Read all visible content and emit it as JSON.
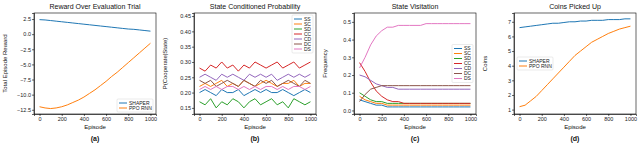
{
  "chart_data": [
    {
      "type": "line",
      "title": "Reward Over Evaluation Trial",
      "x_label": "Episode",
      "y_label": "Total Episode Reward",
      "caption": "(a)",
      "x": [
        0,
        50,
        100,
        150,
        200,
        250,
        300,
        350,
        400,
        450,
        500,
        550,
        600,
        650,
        700,
        750,
        800,
        850,
        900,
        950,
        1000
      ],
      "xlim": [
        -50,
        1050
      ],
      "xticks": [
        0,
        200,
        400,
        600,
        800,
        1000
      ],
      "ylim": [
        -13.2,
        3.5
      ],
      "yticks": [
        {
          "value": -12.5,
          "label": "−12.5"
        },
        {
          "value": -10,
          "label": "−10.0"
        },
        {
          "value": -7.5,
          "label": "−7.5"
        },
        {
          "value": -5,
          "label": "−5.0"
        },
        {
          "value": -2.5,
          "label": "−2.5"
        },
        {
          "value": 0,
          "label": "0.0"
        },
        {
          "value": 2.5,
          "label": "2.5"
        }
      ],
      "legend": "lower right",
      "series": [
        {
          "name": "SHAPER",
          "color": "#1f77b4",
          "values": [
            2.4,
            2.35,
            2.25,
            2.15,
            2.05,
            1.95,
            1.85,
            1.75,
            1.65,
            1.55,
            1.45,
            1.35,
            1.25,
            1.15,
            1.05,
            0.95,
            0.85,
            0.8,
            0.7,
            0.6,
            0.5
          ]
        },
        {
          "name": "PPO RNN",
          "color": "#ff7f0e",
          "values": [
            -12.0,
            -12.2,
            -12.3,
            -12.2,
            -12.0,
            -11.7,
            -11.3,
            -10.9,
            -10.4,
            -9.8,
            -9.2,
            -8.5,
            -7.8,
            -7.0,
            -6.3,
            -5.5,
            -4.7,
            -3.9,
            -3.1,
            -2.3,
            -1.5
          ]
        }
      ]
    },
    {
      "type": "line",
      "title": "State Conditioned Probability",
      "x_label": "Episode",
      "y_label": "P(Cooperate|State)",
      "caption": "(b)",
      "x": [
        0,
        50,
        100,
        150,
        200,
        250,
        300,
        350,
        400,
        450,
        500,
        550,
        600,
        650,
        700,
        750,
        800,
        850,
        900,
        950,
        1000
      ],
      "xlim": [
        -50,
        1050
      ],
      "xticks": [
        0,
        200,
        400,
        600,
        800,
        1000
      ],
      "ylim": [
        0.13,
        0.46
      ],
      "yticks": [
        0.15,
        {
          "value": 0.2,
          "label": "0.20"
        },
        0.25,
        {
          "value": 0.3,
          "label": "0.30"
        },
        0.35,
        {
          "value": 0.4,
          "label": "0.40"
        },
        0.45
      ],
      "legend": "upper right",
      "series": [
        {
          "name": "SS",
          "color": "#1f77b4",
          "values": [
            0.2,
            0.21,
            0.2,
            0.19,
            0.21,
            0.2,
            0.2,
            0.21,
            0.19,
            0.2,
            0.21,
            0.2,
            0.21,
            0.2,
            0.2,
            0.21,
            0.2,
            0.19,
            0.2,
            0.21,
            0.2
          ]
        },
        {
          "name": "SC",
          "color": "#ff7f0e",
          "values": [
            0.22,
            0.23,
            0.22,
            0.23,
            0.24,
            0.22,
            0.23,
            0.22,
            0.24,
            0.23,
            0.22,
            0.23,
            0.24,
            0.23,
            0.22,
            0.23,
            0.23,
            0.24,
            0.22,
            0.23,
            0.23
          ]
        },
        {
          "name": "SD",
          "color": "#2ca02c",
          "values": [
            0.17,
            0.16,
            0.18,
            0.15,
            0.17,
            0.16,
            0.18,
            0.17,
            0.15,
            0.17,
            0.18,
            0.16,
            0.17,
            0.18,
            0.16,
            0.17,
            0.15,
            0.18,
            0.17,
            0.16,
            0.17
          ]
        },
        {
          "name": "CC",
          "color": "#d62728",
          "values": [
            0.28,
            0.27,
            0.29,
            0.28,
            0.3,
            0.28,
            0.29,
            0.27,
            0.29,
            0.28,
            0.3,
            0.29,
            0.28,
            0.29,
            0.3,
            0.28,
            0.29,
            0.3,
            0.28,
            0.29,
            0.3
          ]
        },
        {
          "name": "CD",
          "color": "#9467bd",
          "values": [
            0.25,
            0.26,
            0.25,
            0.24,
            0.26,
            0.25,
            0.26,
            0.25,
            0.24,
            0.26,
            0.25,
            0.26,
            0.25,
            0.26,
            0.24,
            0.25,
            0.26,
            0.25,
            0.26,
            0.25,
            0.26
          ]
        },
        {
          "name": "DC",
          "color": "#8c564b",
          "values": [
            0.24,
            0.23,
            0.24,
            0.22,
            0.23,
            0.24,
            0.23,
            0.22,
            0.24,
            0.23,
            0.22,
            0.24,
            0.23,
            0.24,
            0.22,
            0.23,
            0.24,
            0.23,
            0.22,
            0.24,
            0.23
          ]
        },
        {
          "name": "DS",
          "color": "#e377c2",
          "values": [
            0.21,
            0.22,
            0.21,
            0.22,
            0.21,
            0.22,
            0.22,
            0.21,
            0.22,
            0.21,
            0.22,
            0.21,
            0.22,
            0.22,
            0.21,
            0.22,
            0.21,
            0.22,
            0.22,
            0.21,
            0.22
          ]
        }
      ]
    },
    {
      "type": "line",
      "title": "State Visitation",
      "x_label": "Episode",
      "y_label": "Frequency",
      "caption": "(c)",
      "x": [
        0,
        50,
        100,
        150,
        200,
        250,
        300,
        350,
        400,
        450,
        500,
        550,
        600,
        650,
        700,
        750,
        800,
        850,
        900,
        950,
        1000
      ],
      "xlim": [
        -50,
        1050
      ],
      "xticks": [
        0,
        200,
        400,
        600,
        800,
        1000
      ],
      "ylim": [
        -0.02,
        0.55
      ],
      "yticks": [
        {
          "value": 0,
          "label": "0.0"
        },
        0.1,
        0.2,
        0.3,
        0.4,
        0.5
      ],
      "legend": "right",
      "series": [
        {
          "name": "SS",
          "color": "#1f77b4",
          "values": [
            0.06,
            0.05,
            0.04,
            0.03,
            0.03,
            0.02,
            0.02,
            0.02,
            0.02,
            0.02,
            0.02,
            0.02,
            0.02,
            0.02,
            0.02,
            0.02,
            0.02,
            0.02,
            0.02,
            0.02,
            0.02
          ]
        },
        {
          "name": "SC",
          "color": "#ff7f0e",
          "values": [
            0.08,
            0.06,
            0.05,
            0.04,
            0.04,
            0.03,
            0.03,
            0.03,
            0.03,
            0.03,
            0.03,
            0.03,
            0.03,
            0.03,
            0.03,
            0.03,
            0.03,
            0.03,
            0.03,
            0.03,
            0.03
          ]
        },
        {
          "name": "SD",
          "color": "#2ca02c",
          "values": [
            0.1,
            0.08,
            0.06,
            0.05,
            0.05,
            0.04,
            0.04,
            0.04,
            0.04,
            0.04,
            0.04,
            0.04,
            0.04,
            0.04,
            0.04,
            0.04,
            0.04,
            0.04,
            0.04,
            0.04,
            0.04
          ]
        },
        {
          "name": "CC",
          "color": "#d62728",
          "values": [
            0.27,
            0.22,
            0.16,
            0.11,
            0.08,
            0.06,
            0.05,
            0.05,
            0.04,
            0.04,
            0.04,
            0.04,
            0.04,
            0.04,
            0.04,
            0.04,
            0.04,
            0.04,
            0.04,
            0.04,
            0.04
          ]
        },
        {
          "name": "CD",
          "color": "#9467bd",
          "values": [
            0.2,
            0.19,
            0.17,
            0.15,
            0.14,
            0.13,
            0.13,
            0.12,
            0.12,
            0.12,
            0.12,
            0.12,
            0.12,
            0.12,
            0.12,
            0.12,
            0.12,
            0.12,
            0.12,
            0.12,
            0.12
          ]
        },
        {
          "name": "DC",
          "color": "#8c564b",
          "values": [
            0.05,
            0.09,
            0.12,
            0.13,
            0.14,
            0.14,
            0.14,
            0.14,
            0.14,
            0.14,
            0.14,
            0.14,
            0.14,
            0.14,
            0.14,
            0.14,
            0.14,
            0.14,
            0.14,
            0.14,
            0.14
          ]
        },
        {
          "name": "DS",
          "color": "#e377c2",
          "values": [
            0.24,
            0.3,
            0.37,
            0.42,
            0.45,
            0.47,
            0.47,
            0.48,
            0.48,
            0.48,
            0.48,
            0.48,
            0.49,
            0.49,
            0.49,
            0.49,
            0.49,
            0.49,
            0.49,
            0.49,
            0.49
          ]
        }
      ]
    },
    {
      "type": "line",
      "title": "Coins Picked Up",
      "x_label": "Episode",
      "y_label": "Coins",
      "caption": "(d)",
      "x": [
        0,
        50,
        100,
        150,
        200,
        250,
        300,
        350,
        400,
        450,
        500,
        550,
        600,
        650,
        700,
        750,
        800,
        850,
        900,
        950,
        1000
      ],
      "xlim": [
        -50,
        1050
      ],
      "xticks": [
        0,
        200,
        400,
        600,
        800,
        1000
      ],
      "ylim": [
        0.7,
        7.6
      ],
      "yticks": [
        1,
        2,
        3,
        4,
        5,
        6,
        7
      ],
      "legend": "center left",
      "series": [
        {
          "name": "SHAPER",
          "color": "#1f77b4",
          "values": [
            6.6,
            6.65,
            6.7,
            6.75,
            6.8,
            6.85,
            6.9,
            6.9,
            6.95,
            7.0,
            7.0,
            7.05,
            7.05,
            7.1,
            7.1,
            7.1,
            7.15,
            7.15,
            7.15,
            7.2,
            7.2
          ]
        },
        {
          "name": "PPO RNN",
          "color": "#ff7f0e",
          "values": [
            1.2,
            1.3,
            1.6,
            1.9,
            2.3,
            2.7,
            3.1,
            3.5,
            3.9,
            4.3,
            4.7,
            5.0,
            5.3,
            5.6,
            5.8,
            6.0,
            6.2,
            6.35,
            6.5,
            6.6,
            6.7
          ]
        }
      ]
    }
  ]
}
